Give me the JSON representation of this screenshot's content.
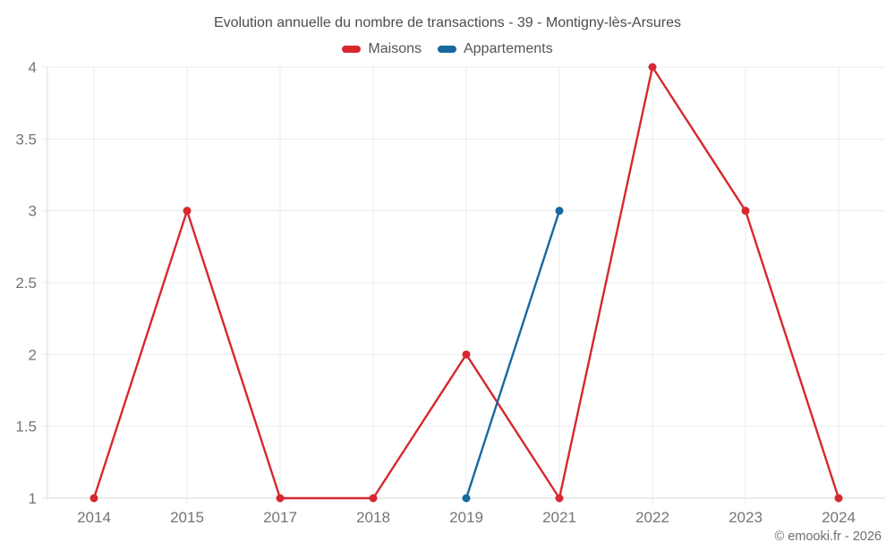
{
  "chart_data": {
    "type": "line",
    "title": "Evolution annuelle du nombre de transactions - 39 - Montigny-lès-Arsures",
    "categories": [
      "2014",
      "2015",
      "2017",
      "2018",
      "2019",
      "2021",
      "2022",
      "2023",
      "2024"
    ],
    "series": [
      {
        "name": "Maisons",
        "color": "#d7282f",
        "values": [
          1,
          3,
          1,
          1,
          2,
          1,
          4,
          3,
          1
        ]
      },
      {
        "name": "Appartements",
        "color": "#17699f",
        "values": [
          null,
          null,
          null,
          null,
          1,
          3,
          null,
          null,
          null
        ]
      }
    ],
    "xlabel": "",
    "ylabel": "",
    "ylim": [
      1,
      4
    ],
    "ytick_step": 0.5,
    "grid": true,
    "legend_position": "top"
  },
  "footer": {
    "copyright": "© emooki.fr - 2026"
  },
  "colors": {
    "grid_line": "#ebebeb",
    "axis_line": "#d9d9d9",
    "tick_label": "#757575",
    "title_text": "#4c4c4c"
  }
}
